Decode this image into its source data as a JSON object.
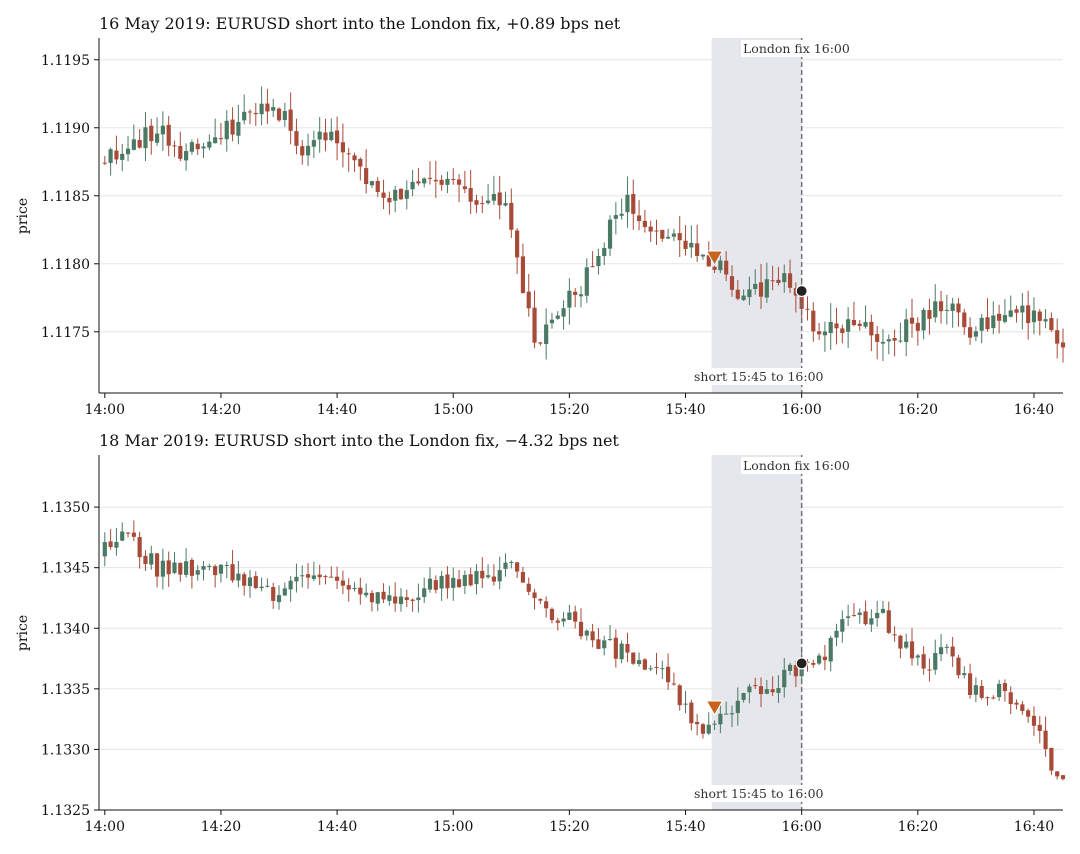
{
  "colors": {
    "up": "#4a7a64",
    "down": "#a84a38",
    "window_shade": "#e6e7ec",
    "fix_line": "#6f7480",
    "entry_marker": "#c8641e",
    "fix_marker": "#222222",
    "grid": "#e5e5e5"
  },
  "chart_data": [
    {
      "type": "candlestick",
      "title": "16 May 2019: EURUSD short into the London fix, +0.89 bps net",
      "xlabel": "",
      "ylabel": "price",
      "x_ticks": [
        "14:00",
        "14:20",
        "14:40",
        "15:00",
        "15:20",
        "15:40",
        "16:00",
        "16:20",
        "16:40"
      ],
      "xlim": [
        "13:59",
        "16:45"
      ],
      "y_ticks": [
        "1.1175",
        "1.1180",
        "1.1185",
        "1.1190",
        "1.1195"
      ],
      "ylim": [
        1.11705,
        1.11966
      ],
      "grid": "horizontal",
      "window": {
        "start": "15:45",
        "end": "16:00",
        "label": "short 15:45 to 16:00"
      },
      "fix": {
        "time": "16:00",
        "label": "London fix 16:00"
      },
      "entry": {
        "time": "15:45",
        "price": 1.11805
      },
      "exit": {
        "time": "16:00",
        "price": 1.1178
      },
      "anchors": [
        [
          0,
          1.11875
        ],
        [
          5,
          1.11885
        ],
        [
          10,
          1.119
        ],
        [
          15,
          1.1188
        ],
        [
          20,
          1.1189
        ],
        [
          25,
          1.1191
        ],
        [
          30,
          1.1192
        ],
        [
          35,
          1.11885
        ],
        [
          40,
          1.119
        ],
        [
          45,
          1.1187
        ],
        [
          50,
          1.1185
        ],
        [
          55,
          1.11855
        ],
        [
          60,
          1.1186
        ],
        [
          65,
          1.1185
        ],
        [
          70,
          1.1184
        ],
        [
          72,
          1.118
        ],
        [
          75,
          1.1174
        ],
        [
          78,
          1.1176
        ],
        [
          82,
          1.1178
        ],
        [
          86,
          1.118
        ],
        [
          88,
          1.1183
        ],
        [
          91,
          1.1185
        ],
        [
          94,
          1.1182
        ],
        [
          98,
          1.1182
        ],
        [
          102,
          1.1181
        ],
        [
          105,
          1.11805
        ],
        [
          110,
          1.1178
        ],
        [
          114,
          1.1178
        ],
        [
          118,
          1.1179
        ],
        [
          122,
          1.1176
        ],
        [
          126,
          1.1175
        ],
        [
          130,
          1.1176
        ],
        [
          134,
          1.1174
        ],
        [
          138,
          1.1175
        ],
        [
          142,
          1.1176
        ],
        [
          146,
          1.1177
        ],
        [
          150,
          1.1175
        ],
        [
          154,
          1.1176
        ],
        [
          159,
          1.11765
        ],
        [
          166,
          1.11745
        ]
      ],
      "seed": 11,
      "step": 2.5e-05,
      "rng_hi": 0.00028,
      "rng_lo": 0.00026
    },
    {
      "type": "candlestick",
      "title": "18 Mar 2019: EURUSD short into the London fix, −4.32 bps net",
      "xlabel": "",
      "ylabel": "price",
      "x_ticks": [
        "14:00",
        "14:20",
        "14:40",
        "15:00",
        "15:20",
        "15:40",
        "16:00",
        "16:20",
        "16:40"
      ],
      "xlim": [
        "13:59",
        "16:45"
      ],
      "y_ticks": [
        "1.1325",
        "1.1330",
        "1.1335",
        "1.1340",
        "1.1345",
        "1.1350"
      ],
      "ylim": [
        1.1325,
        1.13543
      ],
      "grid": "horizontal",
      "window": {
        "start": "15:45",
        "end": "16:00",
        "label": "short 15:45 to 16:00"
      },
      "fix": {
        "time": "16:00",
        "label": "London fix 16:00"
      },
      "entry": {
        "time": "15:45",
        "price": 1.13335
      },
      "exit": {
        "time": "16:00",
        "price": 1.13371
      },
      "anchors": [
        [
          0,
          1.1346
        ],
        [
          4,
          1.1348
        ],
        [
          6,
          1.1347
        ],
        [
          10,
          1.1345
        ],
        [
          15,
          1.1345
        ],
        [
          20,
          1.1345
        ],
        [
          25,
          1.1344
        ],
        [
          30,
          1.1343
        ],
        [
          35,
          1.1344
        ],
        [
          40,
          1.1344
        ],
        [
          45,
          1.1343
        ],
        [
          50,
          1.1342
        ],
        [
          55,
          1.1343
        ],
        [
          60,
          1.1344
        ],
        [
          65,
          1.1344
        ],
        [
          70,
          1.1345
        ],
        [
          72,
          1.1345
        ],
        [
          75,
          1.1342
        ],
        [
          80,
          1.1341
        ],
        [
          85,
          1.1339
        ],
        [
          90,
          1.1338
        ],
        [
          95,
          1.1337
        ],
        [
          97,
          1.1336
        ],
        [
          100,
          1.1334
        ],
        [
          103,
          1.1332
        ],
        [
          106,
          1.1332
        ],
        [
          108,
          1.1333
        ],
        [
          111,
          1.1335
        ],
        [
          115,
          1.1335
        ],
        [
          118,
          1.1336
        ],
        [
          121,
          1.1337
        ],
        [
          125,
          1.1338
        ],
        [
          128,
          1.134
        ],
        [
          131,
          1.1341
        ],
        [
          135,
          1.1341
        ],
        [
          138,
          1.1339
        ],
        [
          142,
          1.1337
        ],
        [
          146,
          1.1338
        ],
        [
          150,
          1.1335
        ],
        [
          154,
          1.1335
        ],
        [
          158,
          1.1334
        ],
        [
          162,
          1.1332
        ],
        [
          164,
          1.1329
        ],
        [
          166,
          1.1328
        ]
      ],
      "seed": 29,
      "step": 2.5e-05,
      "rng_hi": 0.00024,
      "rng_lo": 0.00022
    }
  ]
}
